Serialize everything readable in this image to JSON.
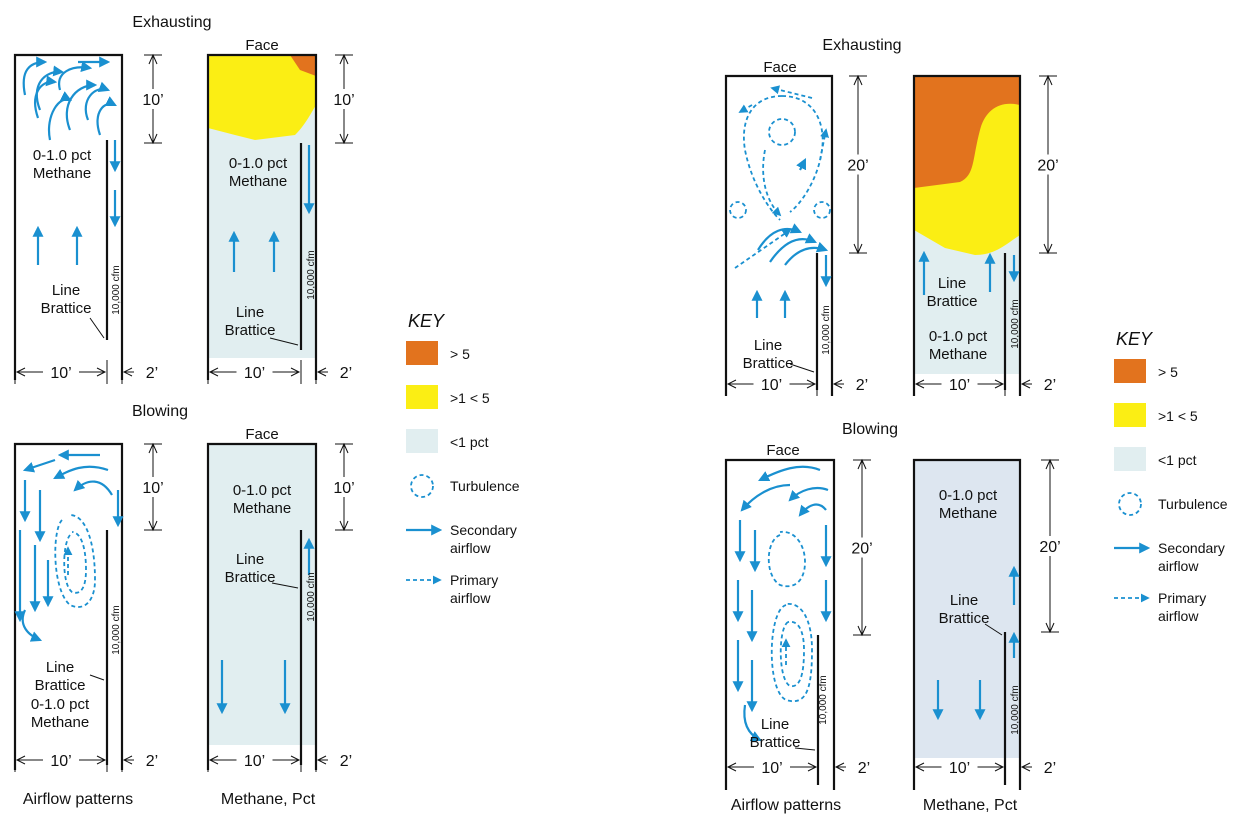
{
  "colors": {
    "high": "#e2731e",
    "mid": "#fbee14",
    "low": "#e1eef0",
    "low_blue": "#dde6f0",
    "airflow": "#1a90d0",
    "line": "#111111"
  },
  "left_figure": {
    "exhausting": {
      "title": "Exhausting",
      "face": "Face",
      "dim_depth": "10’",
      "methane_text": [
        "0-1.0 pct",
        "Methane"
      ],
      "line_brattice": [
        "Line",
        "Brattice"
      ],
      "cfm": "10,000 cfm",
      "width": "10’",
      "gap": "2’"
    },
    "blowing": {
      "title": "Blowing",
      "face": "Face",
      "dim_depth": "10’",
      "methane_text": [
        "0-1.0 pct",
        "Methane"
      ],
      "line_brattice": [
        "Line",
        "Brattice"
      ],
      "cfm": "10,000 cfm",
      "width": "10’",
      "gap": "2’"
    },
    "captions": [
      "Airflow patterns",
      "Methane, Pct"
    ]
  },
  "right_figure": {
    "exhausting": {
      "title": "Exhausting",
      "face": "Face",
      "dim_depth": "20’",
      "methane_text": [
        "0-1.0 pct",
        "Methane"
      ],
      "line_brattice": [
        "Line",
        "Brattice"
      ],
      "cfm": "10,000 cfm",
      "width": "10’",
      "gap": "2’"
    },
    "blowing": {
      "title": "Blowing",
      "face": "Face",
      "dim_depth": "20’",
      "methane_text": [
        "0-1.0 pct",
        "Methane"
      ],
      "line_brattice": [
        "Line",
        "Brattice"
      ],
      "cfm": "10,000 cfm",
      "width": "10’",
      "gap": "2’"
    },
    "captions": [
      "Airflow patterns",
      "Methane, Pct"
    ]
  },
  "key": {
    "title": "KEY",
    "items": [
      {
        "label": "> 5",
        "kind": "swatch",
        "color": "#e2731e"
      },
      {
        "label": ">1 < 5",
        "kind": "swatch",
        "color": "#fbee14"
      },
      {
        "label": "<1 pct",
        "kind": "swatch",
        "color": "#e1eef0"
      },
      {
        "label": "Turbulence",
        "kind": "turbulence-icon"
      },
      {
        "label": [
          "Secondary",
          "airflow"
        ],
        "kind": "secondary-arrow-icon"
      },
      {
        "label": [
          "Primary",
          "airflow"
        ],
        "kind": "primary-arrow-icon"
      }
    ]
  }
}
